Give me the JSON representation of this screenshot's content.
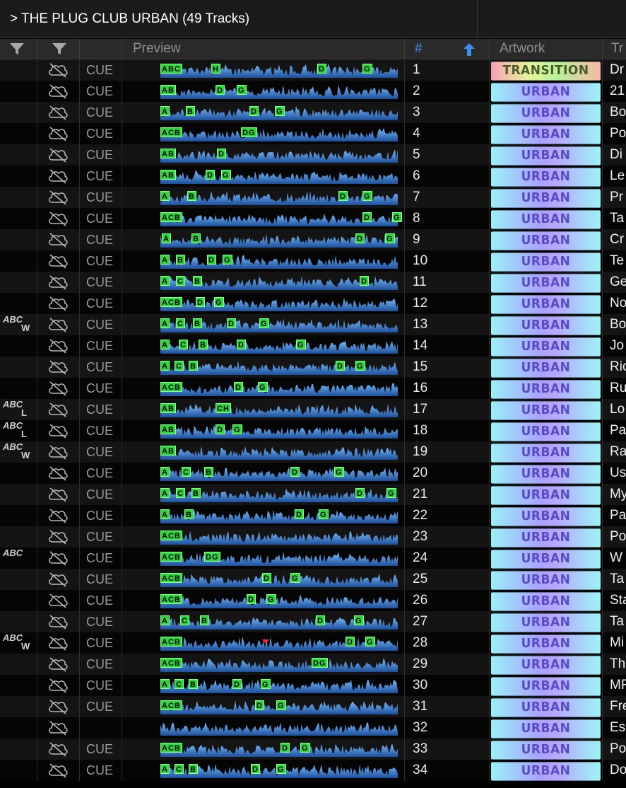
{
  "window": {
    "title": "> THE PLUG CLUB URBAN (49 Tracks)"
  },
  "header": {
    "col_filter1_icon": "filter-icon",
    "col_filter2_icon": "filter-icon",
    "preview": "Preview",
    "number": "#",
    "artwork": "Artwork",
    "title": "Tr"
  },
  "colors": {
    "marker": "#2fd83f",
    "waveform": "#3a7fc8",
    "header_number": "#3d8cf0"
  },
  "rows": [
    {
      "n": "1",
      "cue": "CUE",
      "tag": "",
      "tag_sub": "",
      "art": "TRANSITION",
      "title": "Dr",
      "markers": [
        [
          "ABC",
          0
        ],
        [
          "H",
          72
        ],
        [
          "D",
          222
        ],
        [
          "G",
          286
        ]
      ]
    },
    {
      "n": "2",
      "cue": "CUE",
      "tag": "",
      "tag_sub": "",
      "art": "URBAN",
      "title": "21",
      "markers": [
        [
          "AB",
          0
        ],
        [
          "D",
          78
        ],
        [
          "G",
          108
        ]
      ]
    },
    {
      "n": "3",
      "cue": "CUE",
      "tag": "",
      "tag_sub": "",
      "art": "URBAN",
      "title": "Bo",
      "markers": [
        [
          "A",
          0
        ],
        [
          "B",
          36
        ],
        [
          "D",
          126
        ],
        [
          "G",
          162
        ]
      ]
    },
    {
      "n": "4",
      "cue": "CUE",
      "tag": "",
      "tag_sub": "",
      "art": "URBAN",
      "title": "Po",
      "markers": [
        [
          "ACB",
          0
        ],
        [
          "DG",
          114
        ]
      ]
    },
    {
      "n": "5",
      "cue": "CUE",
      "tag": "",
      "tag_sub": "",
      "art": "URBAN",
      "title": "Di",
      "markers": [
        [
          "AB",
          0
        ],
        [
          "D",
          80
        ]
      ]
    },
    {
      "n": "6",
      "cue": "CUE",
      "tag": "",
      "tag_sub": "",
      "art": "URBAN",
      "title": "Le",
      "markers": [
        [
          "AB",
          0
        ],
        [
          "D",
          64
        ],
        [
          "G",
          86
        ]
      ]
    },
    {
      "n": "7",
      "cue": "CUE",
      "tag": "",
      "tag_sub": "",
      "art": "URBAN",
      "title": "Pr",
      "markers": [
        [
          "A",
          0
        ],
        [
          "B",
          38
        ],
        [
          "D",
          252
        ],
        [
          "G",
          286
        ]
      ]
    },
    {
      "n": "8",
      "cue": "CUE",
      "tag": "",
      "tag_sub": "",
      "art": "URBAN",
      "title": "Ta",
      "markers": [
        [
          "ACB",
          0
        ],
        [
          "D",
          286
        ],
        [
          "G",
          328
        ]
      ]
    },
    {
      "n": "9",
      "cue": "CUE",
      "tag": "",
      "tag_sub": "",
      "art": "URBAN",
      "title": "Cr",
      "markers": [
        [
          "A",
          2
        ],
        [
          "B",
          44
        ],
        [
          "D",
          276
        ],
        [
          "G",
          318
        ]
      ]
    },
    {
      "n": "10",
      "cue": "CUE",
      "tag": "",
      "tag_sub": "",
      "art": "URBAN",
      "title": "Te",
      "markers": [
        [
          "A",
          0
        ],
        [
          "B",
          22
        ],
        [
          "D",
          66
        ],
        [
          "G",
          88
        ]
      ]
    },
    {
      "n": "11",
      "cue": "CUE",
      "tag": "",
      "tag_sub": "",
      "art": "URBAN",
      "title": "Ge",
      "markers": [
        [
          "A",
          0
        ],
        [
          "C",
          22
        ],
        [
          "B",
          46
        ],
        [
          "D",
          282
        ]
      ]
    },
    {
      "n": "12",
      "cue": "CUE",
      "tag": "",
      "tag_sub": "",
      "art": "URBAN",
      "title": "No",
      "markers": [
        [
          "ACB",
          0
        ],
        [
          "D",
          50
        ],
        [
          "G",
          76
        ]
      ]
    },
    {
      "n": "13",
      "cue": "CUE",
      "tag": "ABC",
      "tag_sub": "W",
      "art": "URBAN",
      "title": "Bo",
      "markers": [
        [
          "A",
          0
        ],
        [
          "C",
          22
        ],
        [
          "B",
          46
        ],
        [
          "D",
          94
        ],
        [
          "G",
          140
        ]
      ]
    },
    {
      "n": "14",
      "cue": "CUE",
      "tag": "",
      "tag_sub": "",
      "art": "URBAN",
      "title": "Jo",
      "markers": [
        [
          "A",
          0
        ],
        [
          "C",
          26
        ],
        [
          "B",
          54
        ],
        [
          "D",
          108
        ],
        [
          "G",
          192
        ]
      ]
    },
    {
      "n": "15",
      "cue": "CUE",
      "tag": "",
      "tag_sub": "",
      "art": "URBAN",
      "title": "Ric",
      "markers": [
        [
          "A",
          0
        ],
        [
          "C",
          20
        ],
        [
          "B",
          40
        ],
        [
          "D",
          248
        ],
        [
          "G",
          276
        ]
      ]
    },
    {
      "n": "16",
      "cue": "CUE",
      "tag": "",
      "tag_sub": "",
      "art": "URBAN",
      "title": "Ru",
      "markers": [
        [
          "ACB",
          0
        ],
        [
          "D",
          104
        ],
        [
          "G",
          138
        ]
      ]
    },
    {
      "n": "17",
      "cue": "CUE",
      "tag": "ABC",
      "tag_sub": "L",
      "art": "URBAN",
      "title": "Lo",
      "markers": [
        [
          "AB",
          0
        ],
        [
          "CH",
          78
        ]
      ]
    },
    {
      "n": "18",
      "cue": "CUE",
      "tag": "ABC",
      "tag_sub": "L",
      "art": "URBAN",
      "title": "Pa",
      "markers": [
        [
          "AB",
          0
        ],
        [
          "D",
          78
        ],
        [
          "G",
          102
        ]
      ]
    },
    {
      "n": "19",
      "cue": "CUE",
      "tag": "ABC",
      "tag_sub": "W",
      "art": "URBAN",
      "title": "Ra",
      "markers": [
        [
          "AB",
          0
        ]
      ]
    },
    {
      "n": "20",
      "cue": "CUE",
      "tag": "",
      "tag_sub": "",
      "art": "URBAN",
      "title": "Us",
      "markers": [
        [
          "A",
          0
        ],
        [
          "C",
          30
        ],
        [
          "B",
          62
        ],
        [
          "D",
          184
        ],
        [
          "G",
          246
        ]
      ]
    },
    {
      "n": "21",
      "cue": "CUE",
      "tag": "",
      "tag_sub": "",
      "art": "URBAN",
      "title": "My",
      "markers": [
        [
          "A",
          0
        ],
        [
          "C",
          22
        ],
        [
          "B",
          44
        ],
        [
          "D",
          276
        ],
        [
          "G",
          320
        ]
      ]
    },
    {
      "n": "22",
      "cue": "CUE",
      "tag": "",
      "tag_sub": "",
      "art": "URBAN",
      "title": "Pa",
      "markers": [
        [
          "A",
          0
        ],
        [
          "B",
          34
        ],
        [
          "D",
          190
        ],
        [
          "G",
          224
        ]
      ]
    },
    {
      "n": "23",
      "cue": "CUE",
      "tag": "",
      "tag_sub": "",
      "art": "URBAN",
      "title": "Po",
      "markers": [
        [
          "ACB",
          0
        ]
      ]
    },
    {
      "n": "24",
      "cue": "CUE",
      "tag": "ABC",
      "tag_sub": "",
      "art": "URBAN",
      "title": "W",
      "markers": [
        [
          "ACB",
          0
        ],
        [
          "DG",
          62
        ]
      ]
    },
    {
      "n": "25",
      "cue": "CUE",
      "tag": "",
      "tag_sub": "",
      "art": "URBAN",
      "title": "Ta",
      "markers": [
        [
          "ACB",
          0
        ],
        [
          "D",
          144
        ],
        [
          "G",
          184
        ]
      ]
    },
    {
      "n": "26",
      "cue": "CUE",
      "tag": "",
      "tag_sub": "",
      "art": "URBAN",
      "title": "Sta",
      "markers": [
        [
          "ACB",
          0
        ],
        [
          "D",
          122
        ],
        [
          "G",
          150
        ]
      ]
    },
    {
      "n": "27",
      "cue": "CUE",
      "tag": "",
      "tag_sub": "",
      "art": "URBAN",
      "title": "Ta",
      "markers": [
        [
          "A",
          0
        ],
        [
          "C",
          28
        ],
        [
          "B",
          56
        ],
        [
          "D",
          220
        ],
        [
          "G",
          274
        ]
      ]
    },
    {
      "n": "28",
      "cue": "CUE",
      "tag": "ABC",
      "tag_sub": "W",
      "art": "URBAN",
      "title": "Mi",
      "markers": [
        [
          "ACB",
          0
        ],
        [
          "D",
          262
        ],
        [
          "G",
          290
        ]
      ]
    },
    {
      "n": "29",
      "cue": "CUE",
      "tag": "",
      "tag_sub": "",
      "art": "URBAN",
      "title": "Th",
      "markers": [
        [
          "ACB",
          0
        ],
        [
          "DG",
          214
        ]
      ]
    },
    {
      "n": "30",
      "cue": "CUE",
      "tag": "",
      "tag_sub": "",
      "art": "URBAN",
      "title": "MF",
      "markers": [
        [
          "A",
          0
        ],
        [
          "C",
          20
        ],
        [
          "B",
          40
        ],
        [
          "D",
          102
        ],
        [
          "G",
          142
        ]
      ]
    },
    {
      "n": "31",
      "cue": "CUE",
      "tag": "",
      "tag_sub": "",
      "art": "URBAN",
      "title": "Fre",
      "markers": [
        [
          "ACB",
          0
        ],
        [
          "D",
          134
        ],
        [
          "G",
          164
        ]
      ]
    },
    {
      "n": "32",
      "cue": "",
      "tag": "",
      "tag_sub": "",
      "art": "URBAN",
      "title": "Es",
      "markers": []
    },
    {
      "n": "33",
      "cue": "CUE",
      "tag": "",
      "tag_sub": "",
      "art": "URBAN",
      "title": "Po",
      "markers": [
        [
          "ACB",
          0
        ],
        [
          "D",
          170
        ],
        [
          "G",
          198
        ]
      ]
    },
    {
      "n": "34",
      "cue": "CUE",
      "tag": "",
      "tag_sub": "",
      "art": "URBAN",
      "title": "Do",
      "markers": [
        [
          "A",
          0
        ],
        [
          "C",
          20
        ],
        [
          "B",
          40
        ],
        [
          "D",
          128
        ],
        [
          "G",
          164
        ]
      ]
    }
  ]
}
